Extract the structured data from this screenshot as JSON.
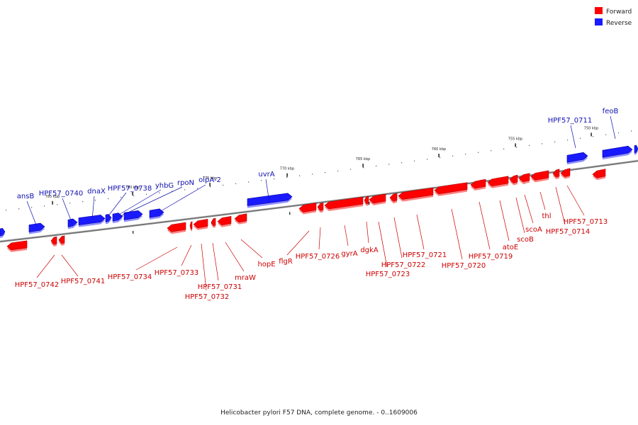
{
  "caption": "Helicobacter pylori F57 DNA, complete genome. - 0..1609006",
  "legend": [
    {
      "label": "Forward",
      "color": "#ff0000"
    },
    {
      "label": "Reverse",
      "color": "#1a1aff"
    }
  ],
  "colors": {
    "forward": "#ff0000",
    "forward_dark": "#b00000",
    "forward_shadow": "#ff8080",
    "reverse": "#1a1aff",
    "reverse_dark": "#0000a0",
    "reverse_shadow": "#9090ff",
    "backbone": "#777777"
  },
  "scale_labels": [
    "750 kbp",
    "755 kbp",
    "760 kbp",
    "765 kbp",
    "770 kbp",
    "775 kbp",
    "780 kbp",
    "785 kbp"
  ],
  "forward_genes": [
    "HPF57_0742",
    "HPF57_0741",
    "HPF57_0734",
    "HPF57_0733",
    "HPF57_0731",
    "HPF57_0732",
    "mraW",
    "hopE",
    "flgR",
    "HPF57_0726",
    "gyrA",
    "dgkA",
    "HPF57_0723",
    "HPF57_0722",
    "HPF57_0721",
    "HPF57_0720",
    "HPF57_0719",
    "atoE",
    "scoB",
    "scoA",
    "thl",
    "HPF57_0714",
    "HPF57_0713"
  ],
  "reverse_genes": [
    "ansB",
    "HPF57_0740",
    "dnaX",
    "HPF57_0738",
    "yhbG",
    "rpoN",
    "oipA-2",
    "uvrA",
    "HPF57_0711",
    "feoB"
  ]
}
